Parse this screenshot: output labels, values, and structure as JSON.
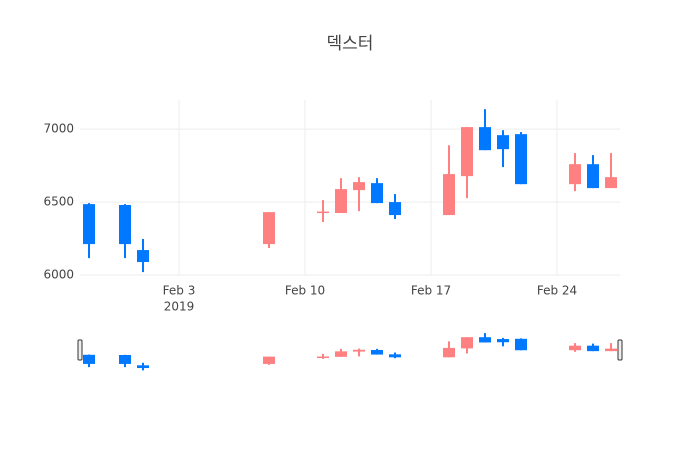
{
  "chart_data": {
    "type": "candlestick",
    "title": "덱스터",
    "x": [
      "2019-01-29",
      "2019-01-31",
      "2019-02-01",
      "2019-02-08",
      "2019-02-11",
      "2019-02-12",
      "2019-02-13",
      "2019-02-14",
      "2019-02-15",
      "2019-02-18",
      "2019-02-19",
      "2019-02-20",
      "2019-02-21",
      "2019-02-22",
      "2019-02-25",
      "2019-02-26",
      "2019-02-27"
    ],
    "open": [
      6486,
      6480,
      6171,
      6212,
      6425,
      6425,
      6582,
      6630,
      6500,
      6411,
      6678,
      7014,
      6959,
      6966,
      6623,
      6760,
      6596
    ],
    "high": [
      6493,
      6486,
      6247,
      6431,
      6514,
      6664,
      6671,
      6664,
      6555,
      6890,
      7014,
      7137,
      6993,
      6980,
      6836,
      6822,
      6836
    ],
    "low": [
      6116,
      6116,
      6020,
      6185,
      6363,
      6425,
      6438,
      6493,
      6384,
      6411,
      6527,
      6856,
      6740,
      6623,
      6575,
      6596,
      6596
    ],
    "close": [
      6212,
      6212,
      6089,
      6431,
      6435,
      6589,
      6637,
      6493,
      6411,
      6692,
      7014,
      6856,
      6863,
      6623,
      6760,
      6596,
      6671
    ],
    "increasing_color": "#ff8080",
    "decreasing_color": "#0078ff",
    "xlim": [
      "2019-01-28T12:00:00Z",
      "2019-02-27T12:00:00Z"
    ],
    "xticks": [
      {
        "value": "2019-02-03",
        "label": "Feb 3"
      },
      {
        "value": "2019-02-10",
        "label": "Feb 10"
      },
      {
        "value": "2019-02-17",
        "label": "Feb 17"
      },
      {
        "value": "2019-02-24",
        "label": "Feb 24"
      }
    ],
    "x_year_label": "2019",
    "ylim": [
      6000,
      7200
    ],
    "yticks": [
      6000,
      6500,
      7000
    ],
    "grid": true,
    "rangeslider": true
  }
}
